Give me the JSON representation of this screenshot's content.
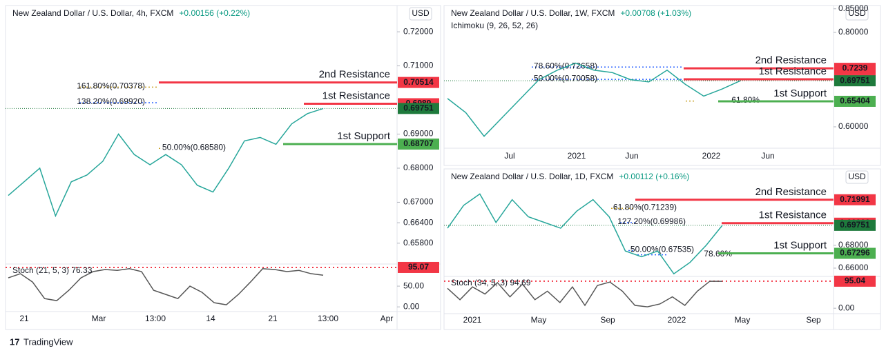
{
  "chart_data": [
    {
      "type": "line",
      "title": "New Zealand Dollar / U.S. Dollar, 4h, FXCM",
      "change": "+0.00156 (+0.22%)",
      "currency": "USD",
      "color": "#26a69a",
      "values": [
        0.672,
        0.676,
        0.68,
        0.666,
        0.676,
        0.678,
        0.682,
        0.69,
        0.684,
        0.681,
        0.684,
        0.681,
        0.675,
        0.673,
        0.68,
        0.688,
        0.689,
        0.687,
        0.693,
        0.696,
        0.6975
      ],
      "ylim": [
        0.6525,
        0.7273
      ],
      "yticks": [
        {
          "value": 0.72,
          "label": "0.72000"
        },
        {
          "value": 0.71,
          "label": "0.71000"
        },
        {
          "value": 0.69,
          "label": "0.69000"
        },
        {
          "value": 0.68,
          "label": "0.68000"
        },
        {
          "value": 0.67,
          "label": "0.67000"
        },
        {
          "value": 0.664,
          "label": "0.66400"
        },
        {
          "value": 0.658,
          "label": "0.65800"
        }
      ],
      "xlabels": [
        "21",
        "Mar",
        "13:00",
        "14",
        "21",
        "13:00",
        "Apr"
      ],
      "levels": [
        {
          "name": "2nd Resistance",
          "value": 0.70514,
          "color": "#f23645"
        },
        {
          "name": "1st Resistance",
          "value": 0.6989,
          "color": "#f23645"
        },
        {
          "name": "1st Support",
          "value": 0.68707,
          "color": "#4caf50"
        }
      ],
      "last_price": {
        "value": 0.69751,
        "color": "#1e7a3c"
      },
      "fibs": [
        {
          "label": "161.80%(0.70378)",
          "value": 0.70378,
          "color": "#c9a227"
        },
        {
          "label": "138.20%(0.69920)",
          "value": 0.6992,
          "color": "#2962ff"
        },
        {
          "label": "50.00%(0.68580)",
          "value": 0.6858,
          "color": "#c9a227"
        }
      ],
      "stoch": {
        "label": "Stoch (21, 5, 3) 76.33",
        "color": "#555555",
        "values": [
          70,
          80,
          60,
          20,
          15,
          40,
          70,
          85,
          90,
          88,
          92,
          85,
          40,
          30,
          20,
          50,
          35,
          10,
          5,
          30,
          60,
          92,
          90,
          85,
          88,
          80,
          76.33
        ],
        "ylim": [
          -8,
          100
        ],
        "level": 95.07,
        "level_color": "#f23645",
        "yticks": [
          {
            "value": 50,
            "label": "50.00"
          },
          {
            "value": 0,
            "label": "0.00"
          }
        ]
      }
    },
    {
      "type": "line",
      "title": "New Zealand Dollar / U.S. Dollar, 1W, FXCM",
      "change": "+0.00708 (+1.03%)",
      "currency": "USD",
      "indicator": "Ichimoku (9, 26, 52, 26)",
      "color": "#26a69a",
      "values": [
        0.66,
        0.63,
        0.58,
        0.62,
        0.66,
        0.7,
        0.72,
        0.735,
        0.72,
        0.715,
        0.7,
        0.695,
        0.72,
        0.69,
        0.665,
        0.68,
        0.6975
      ],
      "ylim": [
        0.5547,
        0.854
      ],
      "yticks": [
        {
          "value": 0.85,
          "label": "0.85000"
        },
        {
          "value": 0.8,
          "label": "0.80000"
        },
        {
          "value": 0.6,
          "label": "0.60000"
        }
      ],
      "xlabels": [
        "Jul",
        "2021",
        "Jun",
        "2022",
        "Jun"
      ],
      "levels": [
        {
          "name": "2nd Resistance",
          "value": 0.7239,
          "color": "#f23645"
        },
        {
          "name": "1st Resistance",
          "value": 0.70061,
          "color": "#f23645"
        },
        {
          "name": "1st Support",
          "value": 0.65404,
          "color": "#4caf50"
        }
      ],
      "last_price": {
        "value": 0.69751,
        "color": "#1e7a3c"
      },
      "fibs": [
        {
          "label": "78.60%(0.72658)",
          "value": 0.72658,
          "color": "#2962ff"
        },
        {
          "label": "50.00%(0.70058)",
          "value": 0.70058,
          "color": "#2962ff"
        },
        {
          "label": "61.80%",
          "value": 0.6545,
          "color": "#c9a227"
        }
      ]
    },
    {
      "type": "line",
      "title": "New Zealand Dollar / U.S. Dollar, 1D, FXCM",
      "change": "+0.00112 (+0.16%)",
      "currency": "USD",
      "color": "#26a69a",
      "values": [
        0.695,
        0.715,
        0.725,
        0.7,
        0.72,
        0.705,
        0.7,
        0.695,
        0.71,
        0.72,
        0.705,
        0.675,
        0.67,
        0.675,
        0.655,
        0.665,
        0.68,
        0.6975
      ],
      "ylim": [
        0.65333,
        0.7367
      ],
      "yticks": [
        {
          "value": 0.68,
          "label": "0.68000"
        },
        {
          "value": 0.66,
          "label": "0.66000"
        }
      ],
      "xlabels": [
        "2021",
        "May",
        "Sep",
        "2022",
        "May",
        "Sep"
      ],
      "levels": [
        {
          "name": "2nd Resistance",
          "value": 0.71991,
          "color": "#f23645"
        },
        {
          "name": "1st Resistance",
          "value": 0.69938,
          "color": "#f23645"
        },
        {
          "name": "1st Support",
          "value": 0.67296,
          "color": "#4caf50"
        }
      ],
      "last_price": {
        "value": 0.69751,
        "color": "#1e7a3c"
      },
      "fibs": [
        {
          "label": "61.80%(0.71239)",
          "value": 0.71239,
          "color": "#c9a227"
        },
        {
          "label": "127.20%(0.69986)",
          "value": 0.69986,
          "color": "#2962ff"
        },
        {
          "label": "50.00%(0.67535)",
          "value": 0.67535,
          "color": "#2962ff"
        },
        {
          "label": "78.60%",
          "value": 0.6717,
          "color": "#2962ff"
        }
      ],
      "stoch": {
        "label": "Stoch (34, 5, 3) 94.69",
        "color": "#555555",
        "values": [
          70,
          30,
          75,
          50,
          90,
          40,
          85,
          30,
          60,
          20,
          75,
          10,
          80,
          92,
          60,
          10,
          5,
          15,
          40,
          10,
          60,
          95,
          94.69
        ],
        "ylim": [
          -19,
          107
        ],
        "level": 95.04,
        "level_color": "#f23645",
        "yticks": [
          {
            "value": 0,
            "label": "0.00"
          }
        ]
      }
    }
  ],
  "footer": "TradingView"
}
